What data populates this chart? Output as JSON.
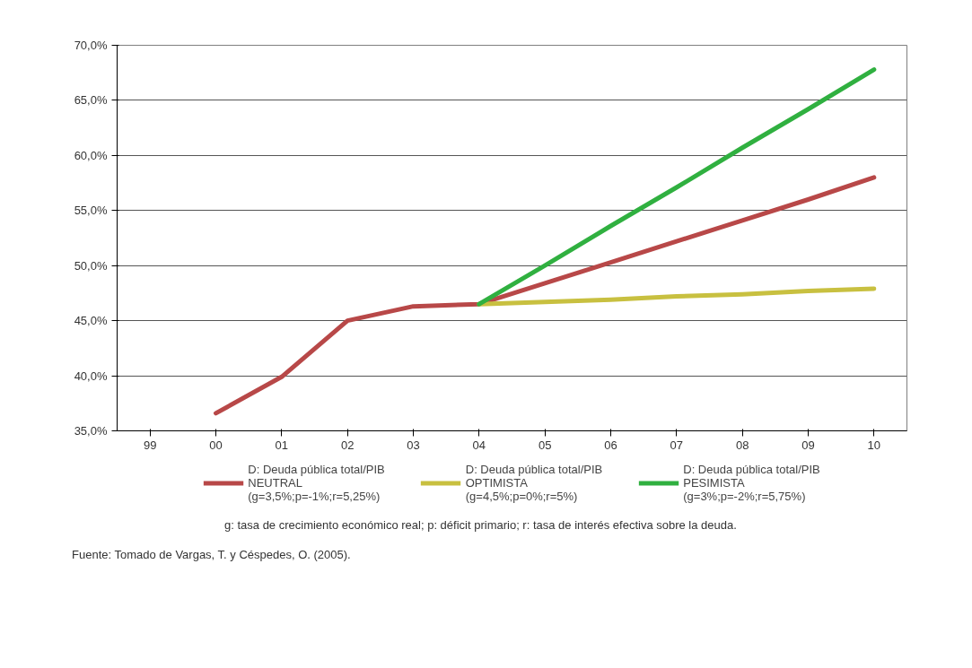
{
  "chart_data": {
    "type": "line",
    "categories": [
      "99",
      "00",
      "01",
      "02",
      "03",
      "04",
      "05",
      "06",
      "07",
      "08",
      "09",
      "10"
    ],
    "series": [
      {
        "name": "D: Deuda pública total/PIB\nNEUTRAL\n(g=3,5%;p=-1%;r=5,25%)",
        "color": "#b84848",
        "values": [
          null,
          36.6,
          39.9,
          45.0,
          46.3,
          46.5,
          48.4,
          50.3,
          52.2,
          54.1,
          56.0,
          58.0
        ]
      },
      {
        "name": "D: Deuda pública total/PIB\nOPTIMISTA\n(g=4,5%;p=0%;r=5%)",
        "color": "#c8c040",
        "values": [
          null,
          null,
          null,
          null,
          null,
          46.5,
          46.7,
          46.9,
          47.2,
          47.4,
          47.7,
          47.9
        ]
      },
      {
        "name": "D: Deuda pública total/PIB\nPESIMISTA\n(g=3%;p=-2%;r=5,75%)",
        "color": "#30b040",
        "values": [
          null,
          null,
          null,
          null,
          null,
          46.5,
          50.0,
          53.6,
          57.1,
          60.7,
          64.2,
          67.8
        ]
      }
    ],
    "ylim": [
      35,
      70
    ],
    "yticks": [
      {
        "value": 35,
        "label": "35,0%"
      },
      {
        "value": 40,
        "label": "40,0%"
      },
      {
        "value": 45,
        "label": "45,0%"
      },
      {
        "value": 50,
        "label": "50,0%"
      },
      {
        "value": 55,
        "label": "55,0%"
      },
      {
        "value": 60,
        "label": "60,0%"
      },
      {
        "value": 65,
        "label": "65,0%"
      },
      {
        "value": 70,
        "label": "70,0%"
      }
    ],
    "grid": "y",
    "legend": "bottom",
    "marker": "none",
    "line_style": "solid",
    "annotations": [
      "g: tasa de crecimiento económico real; p: déficit primario; r: tasa de interés efectiva sobre la deuda.",
      "Fuente: Tomado de Vargas, T. y Céspedes, O. (2005)."
    ]
  }
}
